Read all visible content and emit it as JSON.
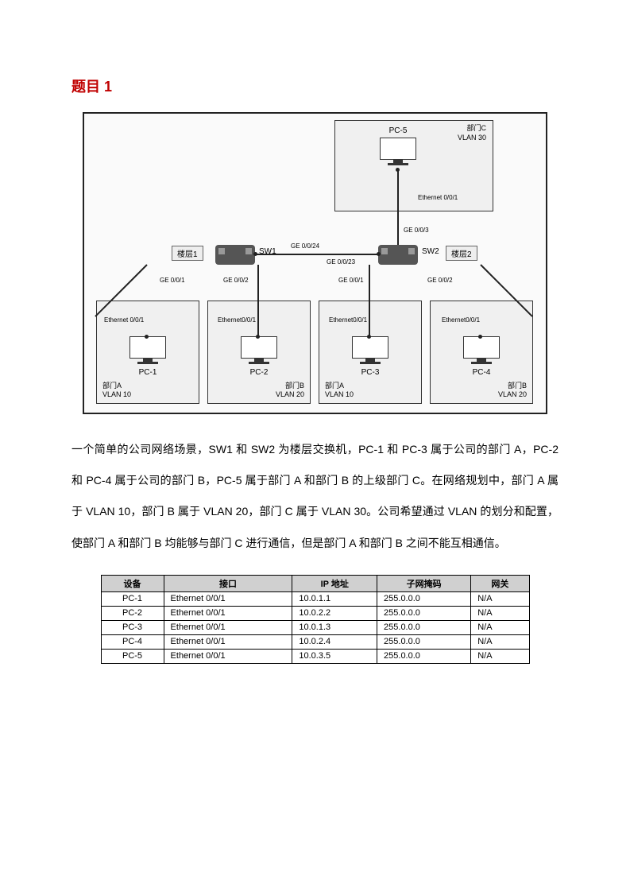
{
  "title": "题目 1",
  "diagram": {
    "departments": {
      "c": {
        "name": "部门C",
        "vlan": "VLAN 30"
      },
      "a1": {
        "name": "部门A",
        "vlan": "VLAN 10"
      },
      "b1": {
        "name": "部门B",
        "vlan": "VLAN 20"
      },
      "a2": {
        "name": "部门A",
        "vlan": "VLAN 10"
      },
      "b2": {
        "name": "部门B",
        "vlan": "VLAN 20"
      }
    },
    "pcs": {
      "pc1": "PC-1",
      "pc2": "PC-2",
      "pc3": "PC-3",
      "pc4": "PC-4",
      "pc5": "PC-5"
    },
    "switches": {
      "sw1": "SW1",
      "sw2": "SW2"
    },
    "floors": {
      "f1": "楼层1",
      "f2": "楼层2"
    },
    "ports": {
      "eth001": "Ethernet 0/0/1",
      "eth001_s": "Ethernet0/0/1",
      "ge001": "GE 0/0/1",
      "ge002": "GE 0/0/2",
      "ge003": "GE 0/0/3",
      "ge0023": "GE 0/0/23",
      "ge0024": "GE 0/0/24"
    }
  },
  "description": "一个简单的公司网络场景，SW1 和 SW2 为楼层交换机，PC-1 和 PC-3 属于公司的部门 A，PC-2 和 PC-4 属于公司的部门 B，PC-5 属于部门 A 和部门 B 的上级部门 C。在网络规划中，部门 A 属于 VLAN 10，部门 B 属于 VLAN 20，部门 C 属于 VLAN 30。公司希望通过 VLAN 的划分和配置，使部门 A 和部门 B 均能够与部门 C 进行通信，但是部门 A 和部门 B 之间不能互相通信。",
  "table": {
    "headers": [
      "设备",
      "接口",
      "IP 地址",
      "子网掩码",
      "网关"
    ],
    "rows": [
      [
        "PC-1",
        "Ethernet 0/0/1",
        "10.0.1.1",
        "255.0.0.0",
        "N/A"
      ],
      [
        "PC-2",
        "Ethernet 0/0/1",
        "10.0.2.2",
        "255.0.0.0",
        "N/A"
      ],
      [
        "PC-3",
        "Ethernet 0/0/1",
        "10.0.1.3",
        "255.0.0.0",
        "N/A"
      ],
      [
        "PC-4",
        "Ethernet 0/0/1",
        "10.0.2.4",
        "255.0.0.0",
        "N/A"
      ],
      [
        "PC-5",
        "Ethernet 0/0/1",
        "10.0.3.5",
        "255.0.0.0",
        "N/A"
      ]
    ]
  }
}
